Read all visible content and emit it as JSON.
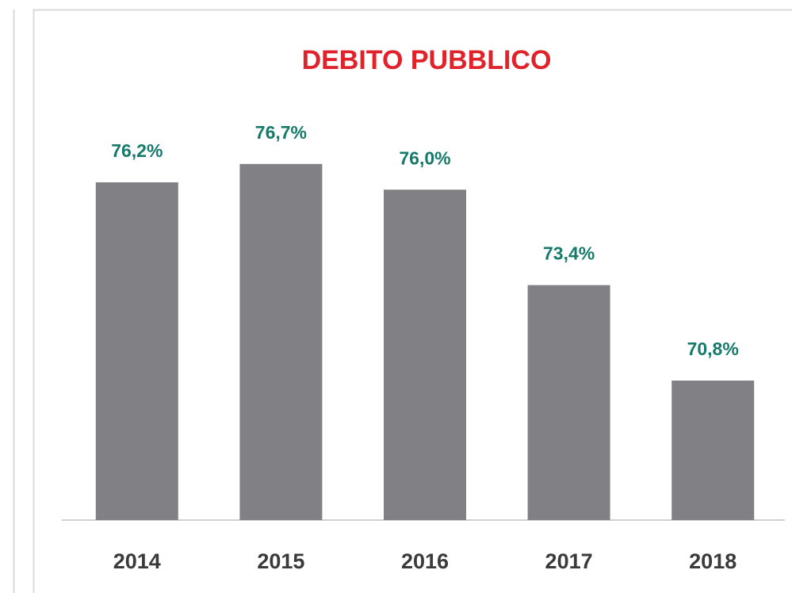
{
  "chart_data": {
    "type": "bar",
    "title": "DEBITO PUBBLICO",
    "categories": [
      "2014",
      "2015",
      "2016",
      "2017",
      "2018"
    ],
    "values": [
      76.2,
      76.7,
      76.0,
      73.4,
      70.8
    ],
    "value_labels": [
      "76,2%",
      "76,7%",
      "76,0%",
      "73,4%",
      "70,8%"
    ],
    "color": "#818185",
    "ylim": [
      67,
      80
    ]
  }
}
